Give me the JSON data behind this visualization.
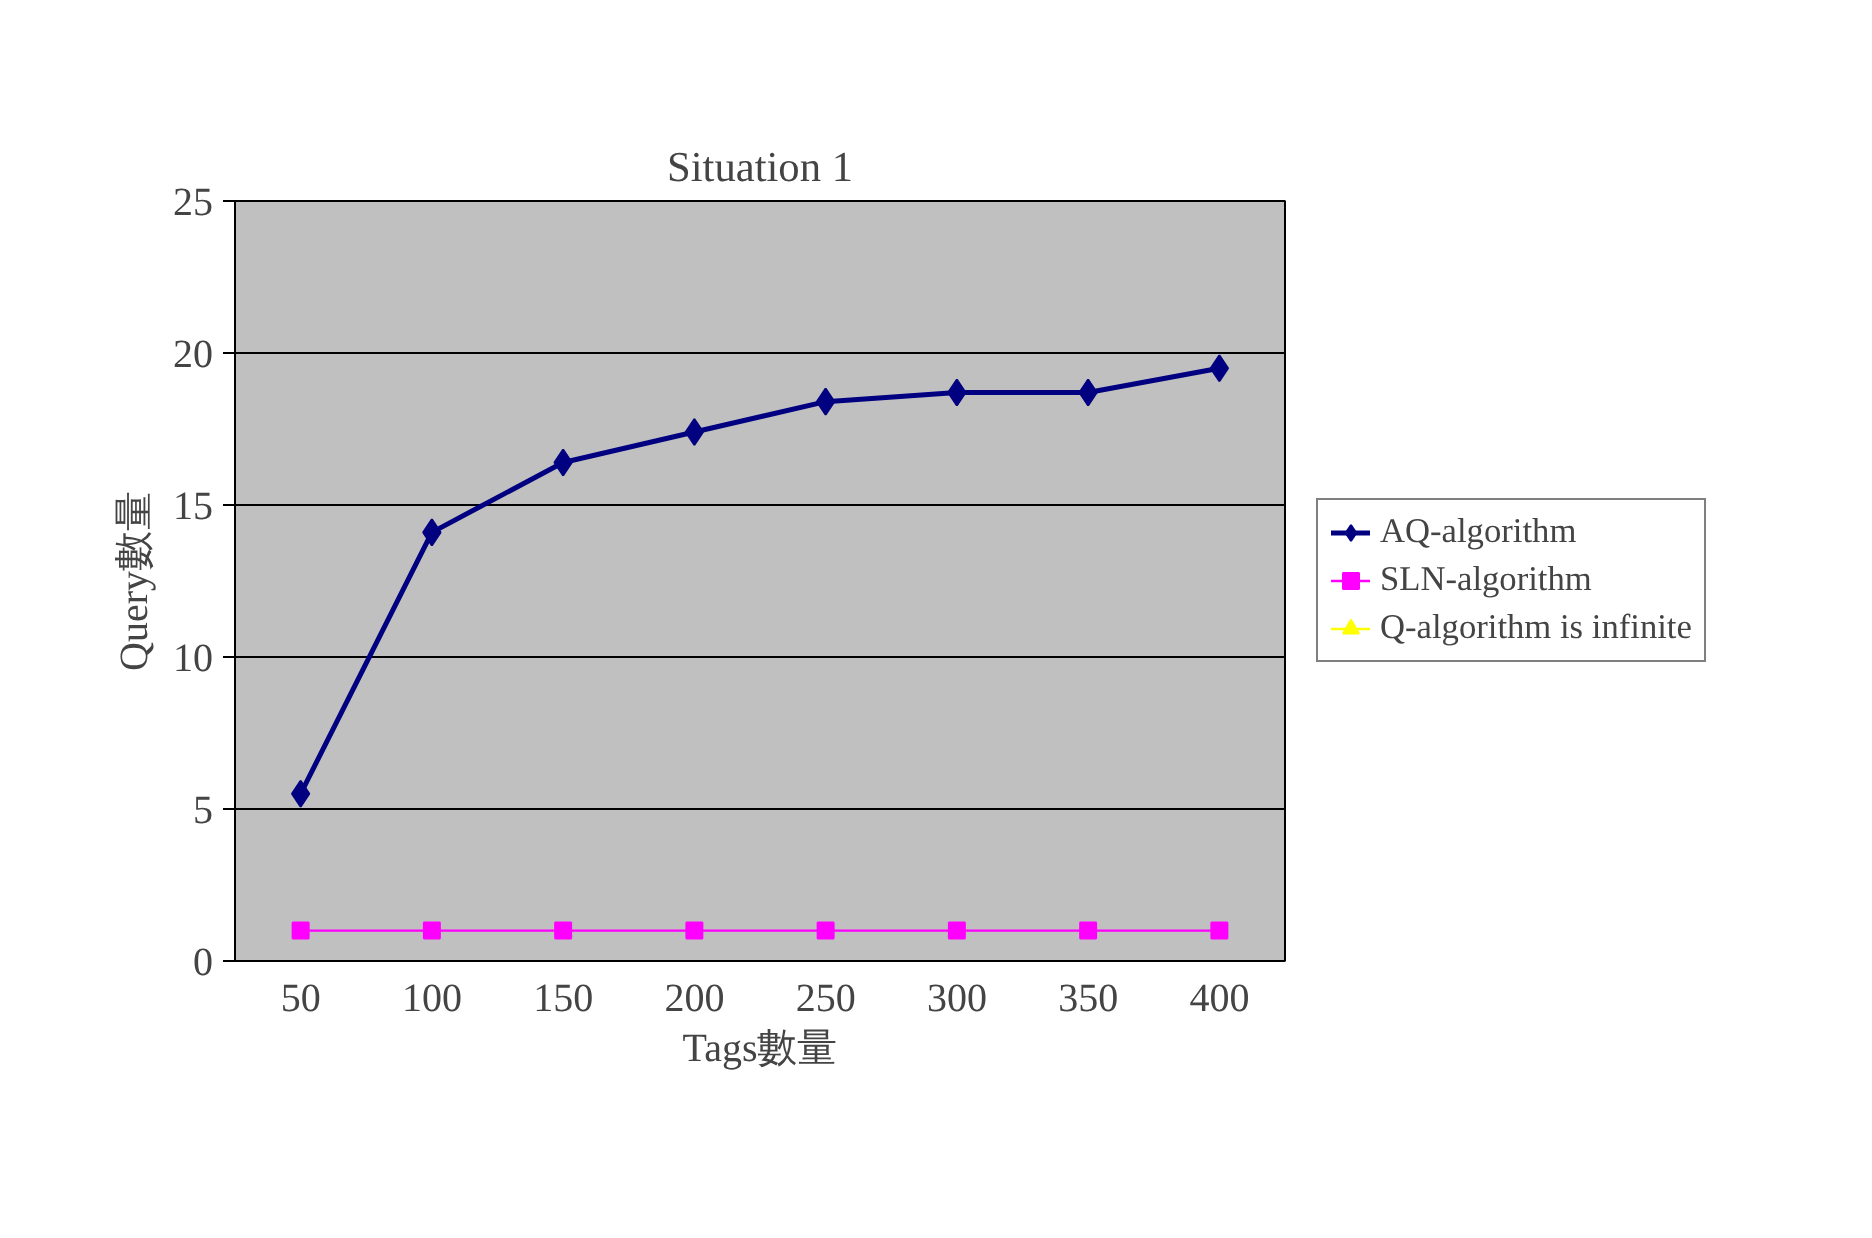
{
  "chart_data": {
    "type": "line",
    "title": "Situation 1",
    "xlabel": "Tags數量",
    "ylabel": "Query數量",
    "categories": [
      "50",
      "100",
      "150",
      "200",
      "250",
      "300",
      "350",
      "400"
    ],
    "ylim": [
      0,
      25
    ],
    "yticks": [
      0,
      5,
      10,
      15,
      20,
      25
    ],
    "grid": "y",
    "legend": "right",
    "series": [
      {
        "name": "AQ-algorithm",
        "color": "#000080",
        "marker": "diamond",
        "values": [
          5.5,
          14.1,
          16.4,
          17.4,
          18.4,
          18.7,
          18.7,
          19.5
        ]
      },
      {
        "name": "SLN-algorithm",
        "color": "#ff00ff",
        "marker": "square",
        "values": [
          1,
          1,
          1,
          1,
          1,
          1,
          1,
          1
        ]
      },
      {
        "name": "Q-algorithm is infinite",
        "color": "#ffff00",
        "marker": "triangle",
        "values": [
          null,
          null,
          null,
          null,
          null,
          null,
          null,
          null
        ]
      }
    ]
  }
}
